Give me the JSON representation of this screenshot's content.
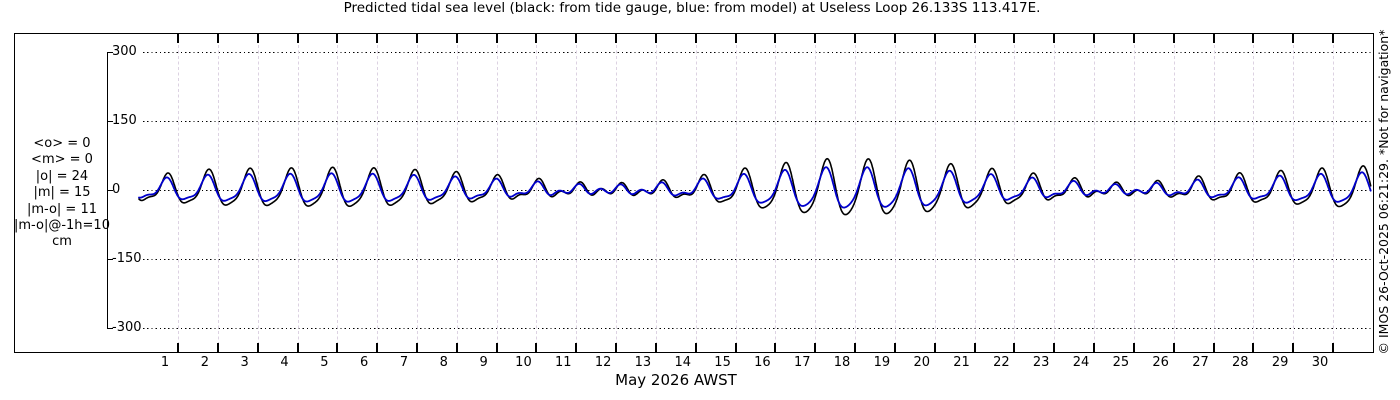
{
  "title": "Predicted tidal sea level (black: from tide gauge, blue: from model) at Useless Loop 26.133S 113.417E.",
  "stats": {
    "lines": [
      "<o> = 0",
      "<m> = 0",
      "|o| = 24",
      "|m| = 15",
      "|m-o| = 11",
      "|m-o|@-1h=10",
      "cm"
    ]
  },
  "watermark": "© IMOS 26-Oct-2025 06:21:29. *Not for navigation*",
  "colors": {
    "gauge": "#000000",
    "model": "#0000cc",
    "grid_horizontal": "#000000",
    "grid_vertical": "#dcd2e2",
    "text": "#000000",
    "background": "#ffffff"
  },
  "chart_data": {
    "type": "line",
    "title": "Predicted tidal sea level (black: from tide gauge, blue: from model) at Useless Loop 26.133S 113.417E.",
    "xlabel": "May 2026 AWST",
    "ylabel": "cm",
    "ylim": [
      -300,
      300
    ],
    "y_ticks_cm": [
      300,
      150,
      0,
      -150,
      -300
    ],
    "y_tick_labels": [
      "300",
      "150",
      "0",
      "-150",
      "-300"
    ],
    "x_range_days": [
      0,
      31
    ],
    "x_tick_labels": [
      "1",
      "2",
      "3",
      "4",
      "5",
      "6",
      "7",
      "8",
      "9",
      "10",
      "11",
      "12",
      "13",
      "14",
      "15",
      "16",
      "17",
      "18",
      "19",
      "20",
      "21",
      "22",
      "23",
      "24",
      "25",
      "26",
      "27",
      "28",
      "29",
      "30"
    ],
    "grid": {
      "horizontal": "black dotted at y ticks",
      "vertical": "faint dashed at each day boundary"
    },
    "legend": [
      {
        "label": "from tide gauge",
        "color": "#000000"
      },
      {
        "label": "from model",
        "color": "#0000cc"
      }
    ],
    "series": [
      {
        "name": "tide gauge (observed)",
        "color": "#000000",
        "stroke_width": 1.6,
        "daily_diurnal_amplitude_cm": [
          26,
          36,
          39,
          39,
          41,
          41,
          38,
          34,
          29,
          21,
          13,
          6,
          8,
          16,
          29,
          43,
          54,
          61,
          59,
          56,
          48,
          38,
          28,
          18,
          8,
          11,
          21,
          28,
          33,
          38,
          44
        ],
        "semidiurnal_amplitude_cm": 9,
        "diurnal_period_days": 1.0351,
        "semidiurnal_period_days": 0.5175,
        "diurnal_phase_rad": 1.9,
        "semidiurnal_phase_rad": 3.3,
        "lead_days": 0
      },
      {
        "name": "model (predicted)",
        "color": "#0000cc",
        "stroke_width": 1.8,
        "amplitude_ratio_diurnal": 0.72,
        "amplitude_ratio_semidiurnal": 0.8,
        "lead_days": 0.03
      }
    ],
    "mean_stats": {
      "<o>": 0,
      "<m>": 0,
      "|o|": 24,
      "|m|": 15,
      "|m-o|": 11,
      "|m-o|@-1h": 10,
      "units": "cm"
    }
  }
}
